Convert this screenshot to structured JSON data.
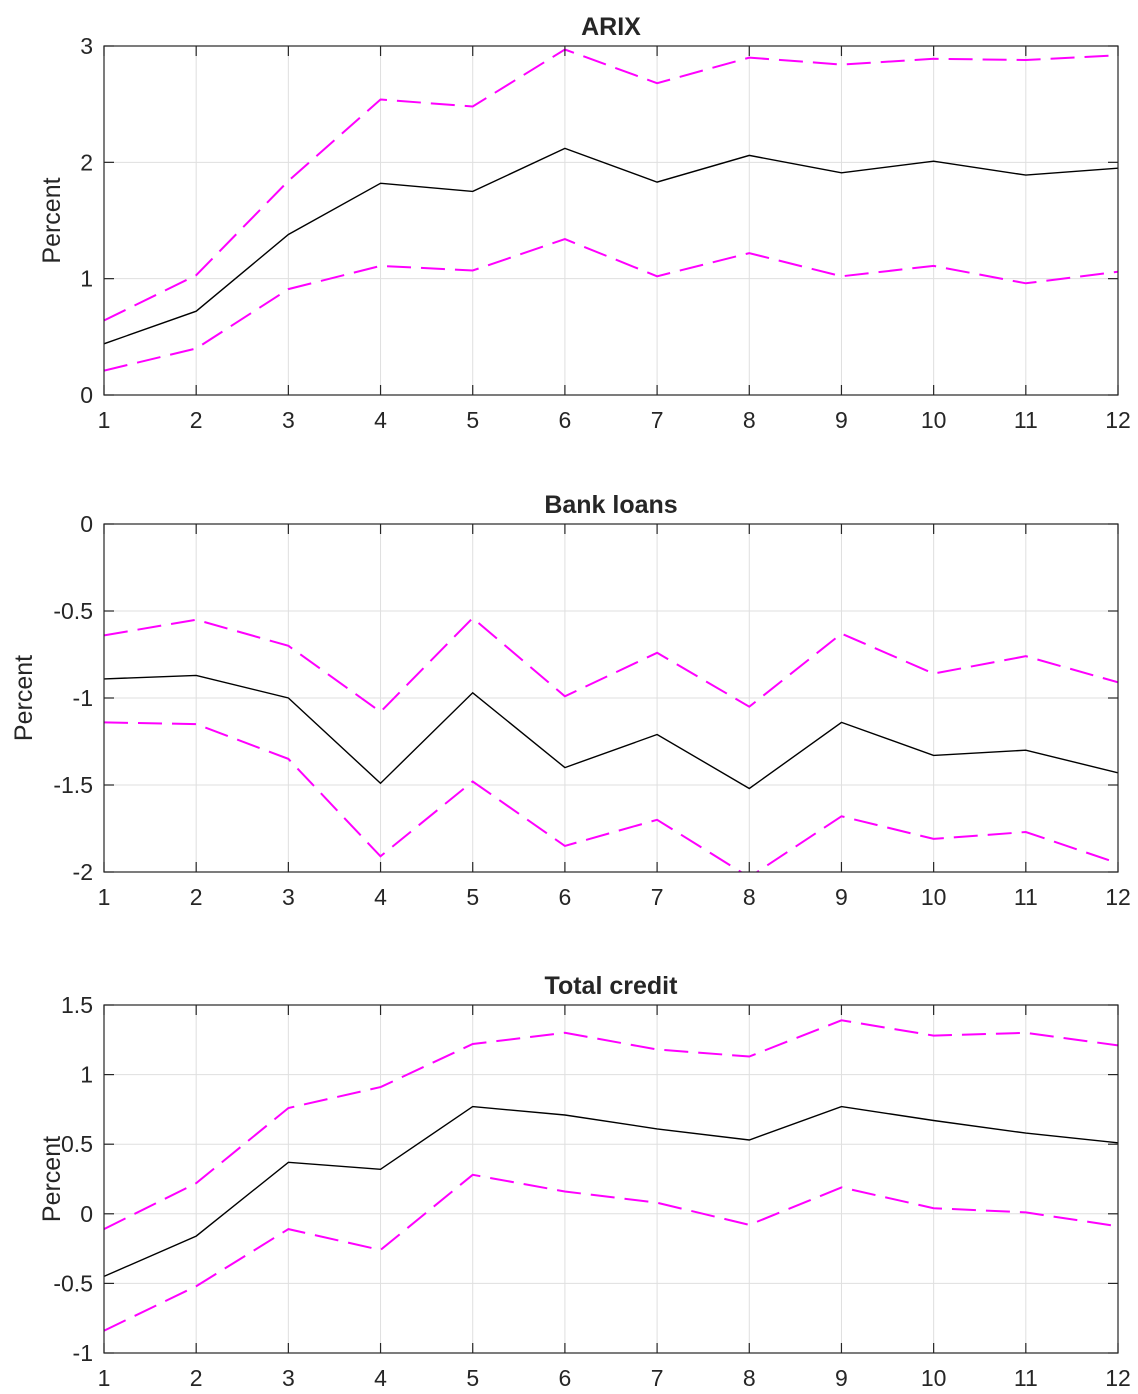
{
  "chart_data": [
    {
      "type": "line",
      "title": "ARIX",
      "xlabel": "",
      "ylabel": "Percent",
      "xlim": [
        1,
        12
      ],
      "ylim": [
        0,
        3
      ],
      "x": [
        1,
        2,
        3,
        4,
        5,
        6,
        7,
        8,
        9,
        10,
        11,
        12
      ],
      "xticks": [
        "1",
        "2",
        "3",
        "4",
        "5",
        "6",
        "7",
        "8",
        "9",
        "10",
        "11",
        "12"
      ],
      "yticks": [
        "0",
        "1",
        "2",
        "3"
      ],
      "grid": true,
      "series": [
        {
          "role": "estimate",
          "color": "#000000",
          "style": "solid",
          "values": [
            0.44,
            0.72,
            1.38,
            1.82,
            1.75,
            2.12,
            1.83,
            2.06,
            1.91,
            2.01,
            1.89,
            1.95
          ]
        },
        {
          "role": "upper-band",
          "color": "#ff00ff",
          "style": "dashed",
          "values": [
            0.64,
            1.03,
            1.84,
            2.54,
            2.48,
            2.97,
            2.68,
            2.9,
            2.84,
            2.89,
            2.88,
            2.92
          ]
        },
        {
          "role": "lower-band",
          "color": "#ff00ff",
          "style": "dashed",
          "values": [
            0.21,
            0.4,
            0.91,
            1.11,
            1.07,
            1.34,
            1.02,
            1.22,
            1.02,
            1.11,
            0.96,
            1.06
          ]
        }
      ]
    },
    {
      "type": "line",
      "title": "Bank loans",
      "xlabel": "",
      "ylabel": "Percent",
      "xlim": [
        1,
        12
      ],
      "ylim": [
        -2,
        0
      ],
      "x": [
        1,
        2,
        3,
        4,
        5,
        6,
        7,
        8,
        9,
        10,
        11,
        12
      ],
      "xticks": [
        "1",
        "2",
        "3",
        "4",
        "5",
        "6",
        "7",
        "8",
        "9",
        "10",
        "11",
        "12"
      ],
      "yticks": [
        "-2",
        "-1.5",
        "-1",
        "-0.5",
        "0"
      ],
      "grid": true,
      "series": [
        {
          "role": "estimate",
          "color": "#000000",
          "style": "solid",
          "values": [
            -0.89,
            -0.87,
            -1.0,
            -1.49,
            -0.97,
            -1.4,
            -1.21,
            -1.52,
            -1.14,
            -1.33,
            -1.3,
            -1.43
          ]
        },
        {
          "role": "upper-band",
          "color": "#ff00ff",
          "style": "dashed",
          "values": [
            -0.64,
            -0.55,
            -0.7,
            -1.08,
            -0.54,
            -0.99,
            -0.74,
            -1.05,
            -0.63,
            -0.86,
            -0.76,
            -0.91
          ]
        },
        {
          "role": "lower-band",
          "color": "#ff00ff",
          "style": "dashed",
          "values": [
            -1.14,
            -1.15,
            -1.35,
            -1.91,
            -1.48,
            -1.85,
            -1.7,
            -2.03,
            -1.68,
            -1.81,
            -1.77,
            -1.95
          ]
        }
      ]
    },
    {
      "type": "line",
      "title": "Total credit",
      "xlabel": "",
      "ylabel": "Percent",
      "xlim": [
        1,
        12
      ],
      "ylim": [
        -1,
        1.5
      ],
      "x": [
        1,
        2,
        3,
        4,
        5,
        6,
        7,
        8,
        9,
        10,
        11,
        12
      ],
      "xticks": [
        "1",
        "2",
        "3",
        "4",
        "5",
        "6",
        "7",
        "8",
        "9",
        "10",
        "11",
        "12"
      ],
      "yticks": [
        "-1",
        "-0.5",
        "0",
        "0.5",
        "1",
        "1.5"
      ],
      "grid": true,
      "series": [
        {
          "role": "estimate",
          "color": "#000000",
          "style": "solid",
          "values": [
            -0.45,
            -0.16,
            0.37,
            0.32,
            0.77,
            0.71,
            0.61,
            0.53,
            0.77,
            0.67,
            0.58,
            0.51
          ]
        },
        {
          "role": "upper-band",
          "color": "#ff00ff",
          "style": "dashed",
          "values": [
            -0.11,
            0.22,
            0.76,
            0.91,
            1.22,
            1.3,
            1.18,
            1.13,
            1.39,
            1.28,
            1.3,
            1.21
          ]
        },
        {
          "role": "lower-band",
          "color": "#ff00ff",
          "style": "dashed",
          "values": [
            -0.84,
            -0.52,
            -0.11,
            -0.26,
            0.28,
            0.16,
            0.08,
            -0.08,
            0.19,
            0.04,
            0.01,
            -0.09
          ]
        }
      ]
    }
  ]
}
